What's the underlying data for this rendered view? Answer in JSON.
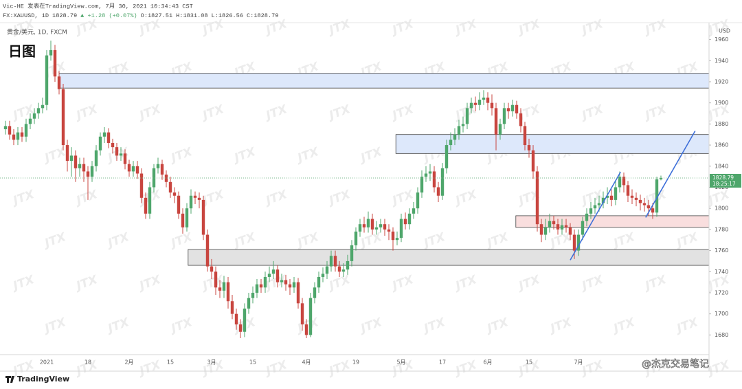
{
  "chart_data": {
    "type": "candlestick",
    "publish_line": "Vic-HE 发表在TradingView.com, 7月 30, 2021 10:34:43 CST",
    "symbol": "FX:XAUUSD, 1D",
    "change": "▲ +1.28 (+0.07%)",
    "ohlc_labels": [
      "O:",
      "H:",
      "L:",
      "C:"
    ],
    "instrument": "黄金/美元, 1D, FXCM",
    "timeframe_label": "日图",
    "currency": "USD",
    "countdown": "18:25:17",
    "watermark": "JTX",
    "credit": "@杰克交易笔记",
    "logo": "TradingView",
    "up_color": "#4ea66b",
    "down_color": "#c8453f",
    "ylim": [
      1662,
      1976
    ],
    "yticks": [
      1680,
      1700,
      1720,
      1740,
      1760,
      1780,
      1800,
      1820,
      1840,
      1860,
      1880,
      1900,
      1920,
      1940,
      1960
    ],
    "grid": false,
    "categories": [
      null,
      null,
      null,
      null,
      null,
      null,
      null,
      null,
      null,
      null,
      "2021",
      null,
      null,
      null,
      null,
      null,
      null,
      null,
      null,
      null,
      "18",
      null,
      null,
      null,
      null,
      null,
      null,
      null,
      null,
      null,
      "2月",
      null,
      null,
      null,
      null,
      null,
      null,
      null,
      null,
      null,
      "15",
      null,
      null,
      null,
      null,
      null,
      null,
      null,
      null,
      null,
      "3月",
      null,
      null,
      null,
      null,
      null,
      null,
      null,
      null,
      null,
      "15",
      null,
      null,
      null,
      null,
      null,
      null,
      null,
      null,
      null,
      null,
      null,
      null,
      "4月",
      null,
      null,
      null,
      null,
      null,
      null,
      null,
      null,
      null,
      null,
      null,
      "19",
      null,
      null,
      null,
      null,
      null,
      null,
      null,
      null,
      null,
      null,
      "5月",
      null,
      null,
      null,
      null,
      null,
      null,
      null,
      null,
      null,
      "17",
      null,
      null,
      null,
      null,
      null,
      null,
      null,
      null,
      null,
      null,
      "6月",
      null,
      null,
      null,
      null,
      null,
      null,
      null,
      null,
      null,
      "15",
      null,
      null,
      null,
      null,
      null,
      null,
      null,
      null,
      null,
      null,
      null,
      "7月",
      null,
      null,
      null,
      null,
      null,
      null,
      null,
      null,
      null,
      null,
      null,
      null,
      null,
      null,
      null,
      null,
      null,
      null,
      null,
      null
    ],
    "ohlc": [
      [
        1875,
        1883,
        1870,
        1878
      ],
      [
        1878,
        1883,
        1865,
        1870
      ],
      [
        1870,
        1875,
        1860,
        1865
      ],
      [
        1865,
        1877,
        1860,
        1872
      ],
      [
        1872,
        1877,
        1863,
        1868
      ],
      [
        1868,
        1885,
        1863,
        1880
      ],
      [
        1880,
        1890,
        1875,
        1885
      ],
      [
        1885,
        1895,
        1880,
        1890
      ],
      [
        1890,
        1900,
        1885,
        1895
      ],
      [
        1895,
        1905,
        1890,
        1898
      ],
      [
        1898,
        1950,
        1893,
        1945
      ],
      [
        1945,
        1959,
        1940,
        1950
      ],
      [
        1950,
        1955,
        1920,
        1925
      ],
      [
        1925,
        1930,
        1908,
        1913
      ],
      [
        1913,
        1918,
        1855,
        1860
      ],
      [
        1860,
        1865,
        1835,
        1845
      ],
      [
        1845,
        1858,
        1830,
        1850
      ],
      [
        1850,
        1855,
        1825,
        1838
      ],
      [
        1838,
        1848,
        1830,
        1842
      ],
      [
        1842,
        1848,
        1825,
        1835
      ],
      [
        1835,
        1840,
        1808,
        1830
      ],
      [
        1830,
        1845,
        1825,
        1840
      ],
      [
        1840,
        1860,
        1835,
        1855
      ],
      [
        1855,
        1872,
        1850,
        1868
      ],
      [
        1868,
        1877,
        1862,
        1872
      ],
      [
        1872,
        1876,
        1857,
        1862
      ],
      [
        1862,
        1866,
        1852,
        1858
      ],
      [
        1858,
        1862,
        1845,
        1850
      ],
      [
        1850,
        1858,
        1845,
        1852
      ],
      [
        1852,
        1856,
        1837,
        1842
      ],
      [
        1842,
        1846,
        1830,
        1835
      ],
      [
        1835,
        1845,
        1830,
        1840
      ],
      [
        1840,
        1845,
        1828,
        1833
      ],
      [
        1833,
        1838,
        1805,
        1810
      ],
      [
        1810,
        1815,
        1790,
        1795
      ],
      [
        1795,
        1825,
        1790,
        1820
      ],
      [
        1820,
        1842,
        1815,
        1838
      ],
      [
        1838,
        1848,
        1833,
        1842
      ],
      [
        1842,
        1846,
        1827,
        1832
      ],
      [
        1832,
        1836,
        1820,
        1825
      ],
      [
        1825,
        1830,
        1810,
        1815
      ],
      [
        1815,
        1820,
        1805,
        1812
      ],
      [
        1812,
        1816,
        1790,
        1795
      ],
      [
        1795,
        1800,
        1776,
        1782
      ],
      [
        1782,
        1805,
        1778,
        1800
      ],
      [
        1800,
        1818,
        1795,
        1812
      ],
      [
        1812,
        1816,
        1804,
        1810
      ],
      [
        1810,
        1815,
        1800,
        1808
      ],
      [
        1808,
        1812,
        1770,
        1775
      ],
      [
        1775,
        1780,
        1740,
        1745
      ],
      [
        1745,
        1752,
        1733,
        1740
      ],
      [
        1740,
        1745,
        1718,
        1725
      ],
      [
        1725,
        1732,
        1715,
        1722
      ],
      [
        1722,
        1736,
        1715,
        1730
      ],
      [
        1730,
        1735,
        1705,
        1712
      ],
      [
        1712,
        1718,
        1695,
        1700
      ],
      [
        1700,
        1705,
        1685,
        1690
      ],
      [
        1690,
        1695,
        1677,
        1683
      ],
      [
        1683,
        1710,
        1678,
        1705
      ],
      [
        1705,
        1720,
        1700,
        1715
      ],
      [
        1715,
        1726,
        1710,
        1720
      ],
      [
        1720,
        1733,
        1715,
        1728
      ],
      [
        1728,
        1733,
        1720,
        1725
      ],
      [
        1725,
        1740,
        1720,
        1735
      ],
      [
        1735,
        1745,
        1730,
        1738
      ],
      [
        1738,
        1750,
        1733,
        1742
      ],
      [
        1742,
        1746,
        1725,
        1730
      ],
      [
        1730,
        1738,
        1725,
        1732
      ],
      [
        1732,
        1737,
        1722,
        1728
      ],
      [
        1728,
        1733,
        1718,
        1725
      ],
      [
        1725,
        1735,
        1720,
        1730
      ],
      [
        1730,
        1734,
        1705,
        1710
      ],
      [
        1710,
        1715,
        1684,
        1690
      ],
      [
        1690,
        1695,
        1677,
        1680
      ],
      [
        1680,
        1720,
        1678,
        1715
      ],
      [
        1715,
        1730,
        1710,
        1725
      ],
      [
        1725,
        1740,
        1720,
        1735
      ],
      [
        1735,
        1744,
        1730,
        1738
      ],
      [
        1738,
        1750,
        1733,
        1745
      ],
      [
        1745,
        1760,
        1740,
        1755
      ],
      [
        1755,
        1760,
        1740,
        1745
      ],
      [
        1745,
        1750,
        1735,
        1740
      ],
      [
        1740,
        1748,
        1735,
        1742
      ],
      [
        1742,
        1756,
        1737,
        1750
      ],
      [
        1750,
        1770,
        1745,
        1765
      ],
      [
        1765,
        1782,
        1760,
        1778
      ],
      [
        1778,
        1790,
        1773,
        1785
      ],
      [
        1785,
        1792,
        1777,
        1782
      ],
      [
        1782,
        1797,
        1777,
        1790
      ],
      [
        1790,
        1795,
        1775,
        1780
      ],
      [
        1780,
        1788,
        1775,
        1782
      ],
      [
        1782,
        1790,
        1777,
        1785
      ],
      [
        1785,
        1790,
        1774,
        1780
      ],
      [
        1780,
        1785,
        1770,
        1778
      ],
      [
        1778,
        1782,
        1760,
        1770
      ],
      [
        1770,
        1778,
        1765,
        1772
      ],
      [
        1772,
        1795,
        1768,
        1790
      ],
      [
        1790,
        1796,
        1780,
        1785
      ],
      [
        1785,
        1800,
        1780,
        1795
      ],
      [
        1795,
        1806,
        1790,
        1800
      ],
      [
        1800,
        1820,
        1795,
        1815
      ],
      [
        1815,
        1836,
        1810,
        1830
      ],
      [
        1830,
        1840,
        1825,
        1833
      ],
      [
        1833,
        1842,
        1826,
        1835
      ],
      [
        1835,
        1840,
        1815,
        1820
      ],
      [
        1820,
        1825,
        1806,
        1812
      ],
      [
        1812,
        1843,
        1808,
        1838
      ],
      [
        1838,
        1865,
        1833,
        1860
      ],
      [
        1860,
        1872,
        1855,
        1865
      ],
      [
        1865,
        1876,
        1860,
        1870
      ],
      [
        1870,
        1884,
        1865,
        1878
      ],
      [
        1878,
        1887,
        1872,
        1880
      ],
      [
        1880,
        1900,
        1875,
        1895
      ],
      [
        1895,
        1905,
        1890,
        1900
      ],
      [
        1900,
        1906,
        1892,
        1898
      ],
      [
        1898,
        1910,
        1893,
        1903
      ],
      [
        1903,
        1912,
        1898,
        1905
      ],
      [
        1905,
        1910,
        1893,
        1900
      ],
      [
        1900,
        1908,
        1888,
        1895
      ],
      [
        1895,
        1900,
        1855,
        1870
      ],
      [
        1870,
        1885,
        1865,
        1880
      ],
      [
        1880,
        1900,
        1875,
        1895
      ],
      [
        1895,
        1900,
        1885,
        1892
      ],
      [
        1892,
        1903,
        1887,
        1898
      ],
      [
        1898,
        1902,
        1885,
        1890
      ],
      [
        1890,
        1895,
        1872,
        1878
      ],
      [
        1878,
        1882,
        1855,
        1860
      ],
      [
        1860,
        1866,
        1848,
        1855
      ],
      [
        1855,
        1860,
        1828,
        1835
      ],
      [
        1835,
        1840,
        1778,
        1785
      ],
      [
        1785,
        1790,
        1768,
        1775
      ],
      [
        1775,
        1790,
        1770,
        1782
      ],
      [
        1782,
        1795,
        1777,
        1788
      ],
      [
        1788,
        1793,
        1780,
        1785
      ],
      [
        1785,
        1790,
        1775,
        1780
      ],
      [
        1780,
        1790,
        1775,
        1784
      ],
      [
        1784,
        1790,
        1777,
        1782
      ],
      [
        1782,
        1786,
        1770,
        1775
      ],
      [
        1775,
        1780,
        1752,
        1760
      ],
      [
        1760,
        1780,
        1755,
        1775
      ],
      [
        1775,
        1792,
        1770,
        1788
      ],
      [
        1788,
        1800,
        1783,
        1795
      ],
      [
        1795,
        1806,
        1790,
        1800
      ],
      [
        1800,
        1810,
        1795,
        1803
      ],
      [
        1803,
        1812,
        1797,
        1805
      ],
      [
        1805,
        1816,
        1800,
        1810
      ],
      [
        1810,
        1820,
        1804,
        1812
      ],
      [
        1812,
        1818,
        1802,
        1808
      ],
      [
        1808,
        1826,
        1803,
        1820
      ],
      [
        1820,
        1835,
        1815,
        1830
      ],
      [
        1830,
        1834,
        1815,
        1822
      ],
      [
        1822,
        1826,
        1806,
        1812
      ],
      [
        1812,
        1818,
        1804,
        1810
      ],
      [
        1810,
        1815,
        1802,
        1808
      ],
      [
        1808,
        1813,
        1798,
        1805
      ],
      [
        1805,
        1810,
        1797,
        1803
      ],
      [
        1803,
        1808,
        1793,
        1800
      ],
      [
        1800,
        1805,
        1790,
        1796
      ],
      [
        1796,
        1830,
        1792,
        1827.51
      ],
      [
        1827.51,
        1831.08,
        1826.56,
        1828.79
      ]
    ],
    "zones": [
      {
        "start": 13,
        "low": 1914,
        "high": 1928,
        "color": "#dde8fb"
      },
      {
        "start": 94.7,
        "low": 1852,
        "high": 1870,
        "color": "#dde8fb"
      },
      {
        "start": 123.8,
        "low": 1782,
        "high": 1793,
        "color": "#f9dede"
      },
      {
        "start": 44.3,
        "low": 1746,
        "high": 1761,
        "color": "#e2e2e2"
      }
    ],
    "trend_lines": [
      {
        "x": [
          137,
          149.2
        ],
        "y": [
          1751,
          1834.4
        ],
        "color": "#3d6fd9"
      },
      {
        "x": [
          155.3,
          167.3
        ],
        "y": [
          1791.4,
          1873.4
        ],
        "color": "#3d6fd9"
      }
    ]
  }
}
